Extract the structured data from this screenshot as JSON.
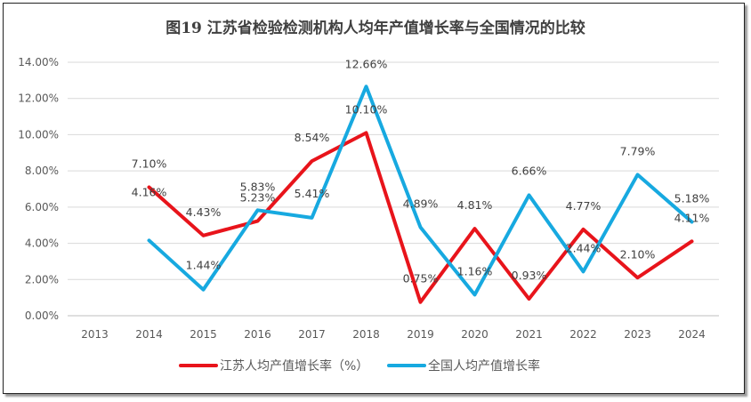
{
  "chart_data": {
    "type": "line",
    "title": "图19  江苏省检验检测机构人均年产值增长率与全国情况的比较",
    "categories": [
      "2013",
      "2014",
      "2015",
      "2016",
      "2017",
      "2018",
      "2019",
      "2020",
      "2021",
      "2022",
      "2023",
      "2024"
    ],
    "ylim": [
      0,
      14
    ],
    "yticks": [
      "0.00%",
      "2.00%",
      "4.00%",
      "6.00%",
      "8.00%",
      "10.00%",
      "12.00%",
      "14.00%"
    ],
    "grid": "horizontal",
    "legend": "bottom",
    "series": [
      {
        "name": "江苏人均产值增长率（%）",
        "color": "#e8141b",
        "values": [
          null,
          7.1,
          4.43,
          5.23,
          8.54,
          10.1,
          0.75,
          4.81,
          0.93,
          4.77,
          2.1,
          4.11
        ],
        "labels": [
          null,
          "7.10%",
          "4.43%",
          "5.23%",
          "8.54%",
          "10.10%",
          "0.75%",
          "4.81%",
          "0.93%",
          "4.77%",
          "2.10%",
          "4.11%"
        ]
      },
      {
        "name": "全国人均产值增长率",
        "color": "#17a9e0",
        "values": [
          null,
          4.16,
          1.44,
          5.83,
          5.41,
          12.66,
          4.89,
          1.16,
          6.66,
          2.44,
          7.79,
          5.18
        ],
        "labels": [
          null,
          "4.16%",
          "1.44%",
          "5.83%",
          "5.41%",
          "12.66%",
          "4.89%",
          "1.16%",
          "6.66%",
          "2.44%",
          "7.79%",
          "5.18%"
        ]
      }
    ]
  }
}
